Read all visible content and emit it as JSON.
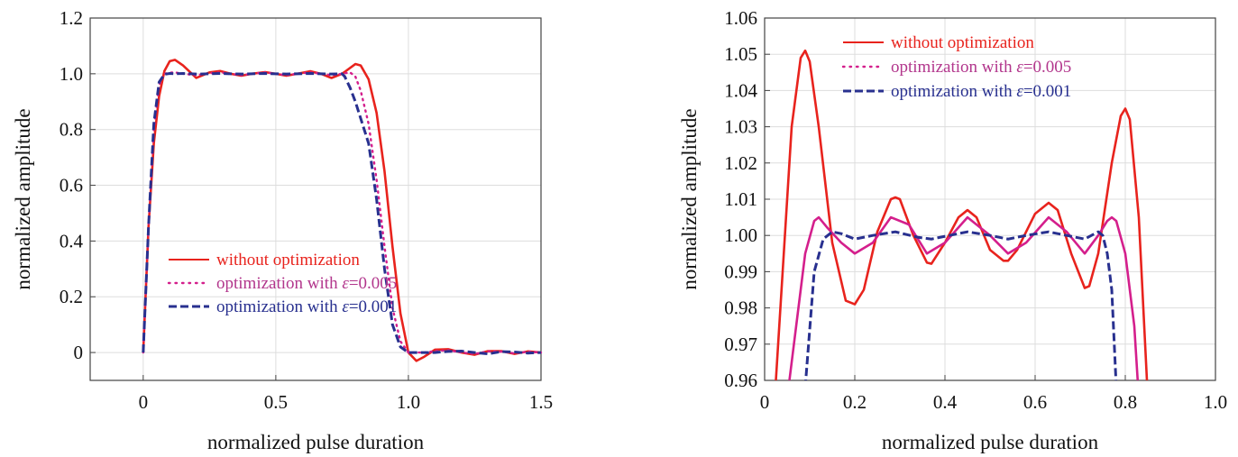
{
  "colors": {
    "without": "#e8231d",
    "opt005": "#d41f8c",
    "opt001": "#28308f",
    "grid": "#dddddd",
    "axis": "#444444"
  },
  "legend": {
    "without": "without optimization",
    "opt005_prefix": "optimization with ",
    "opt005_eps": "ε",
    "opt005_value": "=0.005",
    "opt001_prefix": "optimization with ",
    "opt001_eps": "ε",
    "opt001_value": "=0.001"
  },
  "chart_data": [
    {
      "type": "line",
      "xlabel": "normalized pulse duration",
      "ylabel": "normalized amplitude",
      "xlim": [
        -0.2,
        1.5
      ],
      "ylim": [
        -0.1,
        1.2
      ],
      "xticks": [
        "0",
        "0.5",
        "1.0",
        "1.5"
      ],
      "xtick_values": [
        0,
        0.5,
        1.0,
        1.5
      ],
      "yticks": [
        "0",
        "0.2",
        "0.4",
        "0.6",
        "0.8",
        "1.0",
        "1.2"
      ],
      "ytick_values": [
        0,
        0.2,
        0.4,
        0.6,
        0.8,
        1.0,
        1.2
      ],
      "grid": true,
      "legend_position": "lower-center",
      "series": [
        {
          "name": "without optimization",
          "style": "solid",
          "x": [
            0,
            0.02,
            0.04,
            0.06,
            0.08,
            0.1,
            0.12,
            0.15,
            0.2,
            0.25,
            0.29,
            0.33,
            0.37,
            0.41,
            0.46,
            0.5,
            0.54,
            0.58,
            0.63,
            0.67,
            0.71,
            0.75,
            0.8,
            0.82,
            0.85,
            0.88,
            0.91,
            0.94,
            0.97,
            1.0,
            1.03,
            1.06,
            1.1,
            1.15,
            1.2,
            1.25,
            1.3,
            1.35,
            1.4,
            1.45,
            1.5
          ],
          "y": [
            0,
            0.45,
            0.75,
            0.92,
            1.01,
            1.045,
            1.05,
            1.03,
            0.985,
            1.005,
            1.01,
            1.0,
            0.993,
            1.0,
            1.006,
            1.0,
            0.993,
            1.0,
            1.009,
            1.0,
            0.985,
            1.0,
            1.035,
            1.03,
            0.98,
            0.86,
            0.65,
            0.38,
            0.14,
            0.0,
            -0.03,
            -0.015,
            0.01,
            0.012,
            0.0,
            -0.008,
            0.005,
            0.005,
            -0.005,
            0.004,
            0.0
          ]
        },
        {
          "name": "optimization with ε=0.005",
          "style": "dotted",
          "x": [
            0,
            0.02,
            0.04,
            0.06,
            0.08,
            0.1,
            0.12,
            0.15,
            0.2,
            0.25,
            0.29,
            0.33,
            0.37,
            0.41,
            0.46,
            0.5,
            0.54,
            0.58,
            0.63,
            0.67,
            0.71,
            0.75,
            0.78,
            0.8,
            0.82,
            0.85,
            0.88,
            0.91,
            0.94,
            0.97,
            1.0,
            1.03,
            1.06,
            1.1,
            1.15,
            1.2,
            1.25,
            1.3,
            1.35,
            1.4,
            1.45,
            1.5
          ],
          "y": [
            0,
            0.45,
            0.8,
            0.96,
            1.0,
            1.004,
            1.005,
            1.0,
            0.995,
            1.002,
            1.005,
            1.0,
            0.995,
            1.0,
            1.005,
            1.0,
            0.995,
            1.0,
            1.005,
            1.0,
            0.995,
            1.0,
            1.005,
            0.99,
            0.94,
            0.82,
            0.62,
            0.38,
            0.16,
            0.04,
            0.0,
            0.0,
            0.0,
            0.005,
            0.008,
            0.0,
            -0.005,
            0.004,
            0.003,
            -0.003,
            0.003,
            0.0
          ]
        },
        {
          "name": "optimization with ε=0.001",
          "style": "dashed",
          "x": [
            0,
            0.02,
            0.04,
            0.06,
            0.08,
            0.1,
            0.12,
            0.15,
            0.2,
            0.25,
            0.29,
            0.33,
            0.37,
            0.41,
            0.46,
            0.5,
            0.54,
            0.58,
            0.63,
            0.67,
            0.71,
            0.75,
            0.76,
            0.78,
            0.8,
            0.85,
            0.88,
            0.91,
            0.94,
            0.97,
            1.0,
            1.05,
            1.1,
            1.15,
            1.2,
            1.25,
            1.3,
            1.35,
            1.4,
            1.45,
            1.5
          ],
          "y": [
            0,
            0.45,
            0.82,
            0.97,
            0.998,
            1.001,
            1.0,
            1.001,
            0.999,
            1.0,
            1.001,
            1.0,
            0.999,
            1.0,
            1.001,
            1.0,
            0.999,
            1.0,
            1.001,
            1.0,
            0.999,
            1.0,
            0.99,
            0.95,
            0.9,
            0.75,
            0.55,
            0.3,
            0.1,
            0.02,
            0.0,
            0.0,
            0.0,
            0.004,
            0.005,
            0.0,
            -0.005,
            0.003,
            0.002,
            -0.002,
            0.0
          ]
        }
      ]
    },
    {
      "type": "line",
      "xlabel": "normalized pulse duration",
      "ylabel": "normalized amplitude",
      "xlim": [
        0,
        1.0
      ],
      "ylim": [
        0.96,
        1.06
      ],
      "xticks": [
        "0",
        "0.2",
        "0.4",
        "0.6",
        "0.8",
        "1.0"
      ],
      "xtick_values": [
        0,
        0.2,
        0.4,
        0.6,
        0.8,
        1.0
      ],
      "yticks": [
        "0.96",
        "0.97",
        "0.98",
        "0.99",
        "1.00",
        "1.01",
        "1.02",
        "1.03",
        "1.04",
        "1.05",
        "1.06"
      ],
      "ytick_values": [
        0.96,
        0.97,
        0.98,
        0.99,
        1.0,
        1.01,
        1.02,
        1.03,
        1.04,
        1.05,
        1.06
      ],
      "grid": true,
      "legend_position": "top-left",
      "series": [
        {
          "name": "without optimization",
          "style": "solid",
          "x": [
            0.02,
            0.04,
            0.06,
            0.08,
            0.09,
            0.1,
            0.12,
            0.15,
            0.18,
            0.2,
            0.22,
            0.25,
            0.28,
            0.29,
            0.3,
            0.33,
            0.36,
            0.37,
            0.4,
            0.43,
            0.45,
            0.47,
            0.5,
            0.53,
            0.54,
            0.56,
            0.6,
            0.63,
            0.65,
            0.68,
            0.71,
            0.72,
            0.74,
            0.77,
            0.79,
            0.8,
            0.81,
            0.83,
            0.85
          ],
          "y": [
            0.95,
            0.99,
            1.03,
            1.049,
            1.051,
            1.048,
            1.03,
            0.998,
            0.982,
            0.981,
            0.985,
            1.001,
            1.01,
            1.0105,
            1.01,
            1.0,
            0.9925,
            0.9922,
            0.998,
            1.005,
            1.007,
            1.005,
            0.996,
            0.993,
            0.993,
            0.996,
            1.006,
            1.009,
            1.007,
            0.995,
            0.9855,
            0.986,
            0.995,
            1.02,
            1.033,
            1.035,
            1.032,
            1.005,
            0.955
          ]
        },
        {
          "name": "optimization with ε=0.005",
          "style": "solid",
          "x": [
            0.05,
            0.07,
            0.09,
            0.11,
            0.12,
            0.14,
            0.17,
            0.2,
            0.24,
            0.28,
            0.32,
            0.36,
            0.4,
            0.45,
            0.5,
            0.54,
            0.58,
            0.63,
            0.67,
            0.71,
            0.74,
            0.76,
            0.77,
            0.78,
            0.8,
            0.82,
            0.83
          ],
          "y": [
            0.955,
            0.975,
            0.995,
            1.004,
            1.005,
            1.002,
            0.998,
            0.995,
            0.998,
            1.005,
            1.003,
            0.995,
            0.998,
            1.005,
            1.0,
            0.995,
            0.998,
            1.005,
            1.001,
            0.995,
            1.0,
            1.004,
            1.005,
            1.004,
            0.995,
            0.975,
            0.955
          ]
        },
        {
          "name": "optimization with ε=0.001",
          "style": "dashed",
          "x": [
            0.09,
            0.11,
            0.13,
            0.15,
            0.17,
            0.2,
            0.24,
            0.29,
            0.34,
            0.37,
            0.41,
            0.45,
            0.5,
            0.54,
            0.58,
            0.63,
            0.67,
            0.71,
            0.74,
            0.75,
            0.76,
            0.77,
            0.78
          ],
          "y": [
            0.958,
            0.99,
            0.999,
            1.001,
            1.0005,
            0.999,
            1.0,
            1.001,
            0.9995,
            0.999,
            1.0,
            1.001,
            1.0,
            0.999,
            1.0,
            1.001,
            1.0,
            0.999,
            1.001,
            1.0,
            0.995,
            0.985,
            0.958
          ]
        }
      ]
    }
  ]
}
